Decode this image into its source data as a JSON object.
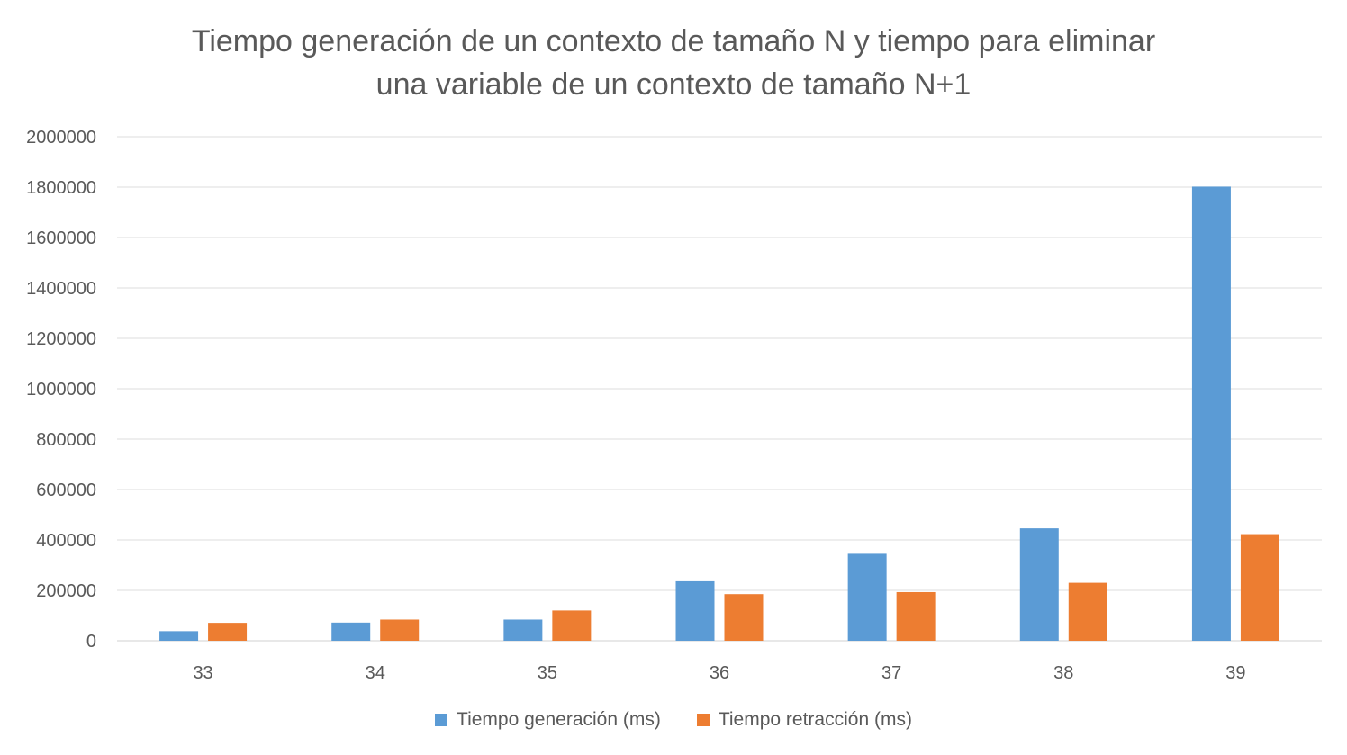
{
  "chart_data": {
    "type": "bar",
    "title_lines": [
      "Tiempo generación de un contexto de tamaño N y tiempo para eliminar",
      "una variable de un contexto de tamaño N+1"
    ],
    "categories": [
      "33",
      "34",
      "35",
      "36",
      "37",
      "38",
      "39"
    ],
    "series": [
      {
        "name": "Tiempo generación (ms)",
        "color": "#5B9BD5",
        "values": [
          38000,
          72000,
          84000,
          236000,
          345000,
          446000,
          1802000
        ]
      },
      {
        "name": "Tiempo retracción (ms)",
        "color": "#ED7D31",
        "values": [
          71000,
          84000,
          120000,
          185000,
          193000,
          230000,
          423000
        ]
      }
    ],
    "ylim": [
      0,
      2000000
    ],
    "yticks": [
      "0",
      "200000",
      "400000",
      "600000",
      "800000",
      "1000000",
      "1200000",
      "1400000",
      "1600000",
      "1800000",
      "2000000"
    ],
    "grid": true,
    "legend_position": "bottom"
  }
}
